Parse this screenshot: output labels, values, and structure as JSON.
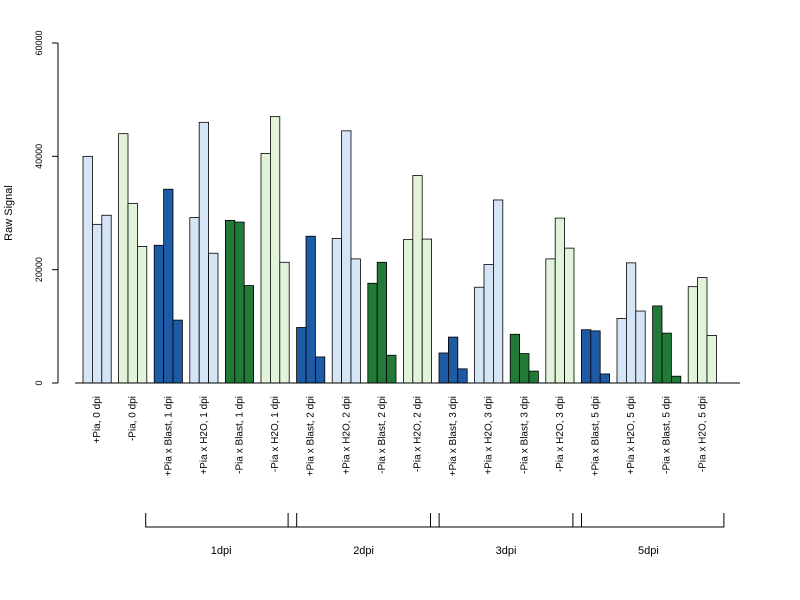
{
  "chart_data": {
    "type": "bar",
    "ylabel": "Raw Signal",
    "xlabel": "",
    "ylim": [
      0,
      60000
    ],
    "yticks": [
      0,
      20000,
      40000,
      60000
    ],
    "ytick_labels": [
      "0",
      "20000",
      "40000",
      "60000"
    ],
    "grid": false,
    "colors": {
      "pia_blast": "#1f5aa5",
      "pia_h2o": "#d6e5f5",
      "nopia_blast": "#227a38",
      "nopia_h2o": "#e1f4da",
      "outline": "#000000"
    },
    "categories": [
      "+Pia, 0 dpi",
      "-Pia, 0 dpi",
      "+Pia x Blast, 1 dpi",
      "+Pia x H2O, 1 dpi",
      "-Pia x Blast, 1 dpi",
      "-Pia x H2O, 1 dpi",
      "+Pia x Blast, 2 dpi",
      "+Pia x H2O, 2 dpi",
      "-Pia x Blast, 2 dpi",
      "-Pia x H2O, 2 dpi",
      "+Pia x Blast, 3 dpi",
      "+Pia x H2O, 3 dpi",
      "-Pia x Blast, 3 dpi",
      "-Pia x H2O, 3 dpi",
      "+Pia x Blast, 5 dpi",
      "+Pia x H2O, 5 dpi",
      "-Pia x Blast, 5 dpi",
      "-Pia x H2O, 5 dpi"
    ],
    "category_color_keys": [
      "pia_h2o",
      "nopia_h2o",
      "pia_blast",
      "pia_h2o",
      "nopia_blast",
      "nopia_h2o",
      "pia_blast",
      "pia_h2o",
      "nopia_blast",
      "nopia_h2o",
      "pia_blast",
      "pia_h2o",
      "nopia_blast",
      "nopia_h2o",
      "pia_blast",
      "pia_h2o",
      "nopia_blast",
      "nopia_h2o"
    ],
    "values": [
      [
        40000,
        28000,
        29600
      ],
      [
        44000,
        31700,
        24100
      ],
      [
        24300,
        34200,
        11100
      ],
      [
        29200,
        46000,
        22900
      ],
      [
        28700,
        28400,
        17200
      ],
      [
        40500,
        47000,
        21300
      ],
      [
        9800,
        25900,
        4600
      ],
      [
        25500,
        44500,
        21900
      ],
      [
        17600,
        21300,
        4900
      ],
      [
        25300,
        36600,
        25400
      ],
      [
        5300,
        8100,
        2500
      ],
      [
        16900,
        20900,
        32300
      ],
      [
        8600,
        5200,
        2100
      ],
      [
        21900,
        29100,
        23800
      ],
      [
        9400,
        9200,
        1600
      ],
      [
        11400,
        21200,
        12700
      ],
      [
        13600,
        8800,
        1200
      ],
      [
        17000,
        18600,
        8400
      ]
    ],
    "groups": [
      {
        "label": "1dpi",
        "from": 2,
        "to": 5
      },
      {
        "label": "2dpi",
        "from": 6,
        "to": 9
      },
      {
        "label": "3dpi",
        "from": 10,
        "to": 13
      },
      {
        "label": "5dpi",
        "from": 14,
        "to": 17
      }
    ]
  }
}
